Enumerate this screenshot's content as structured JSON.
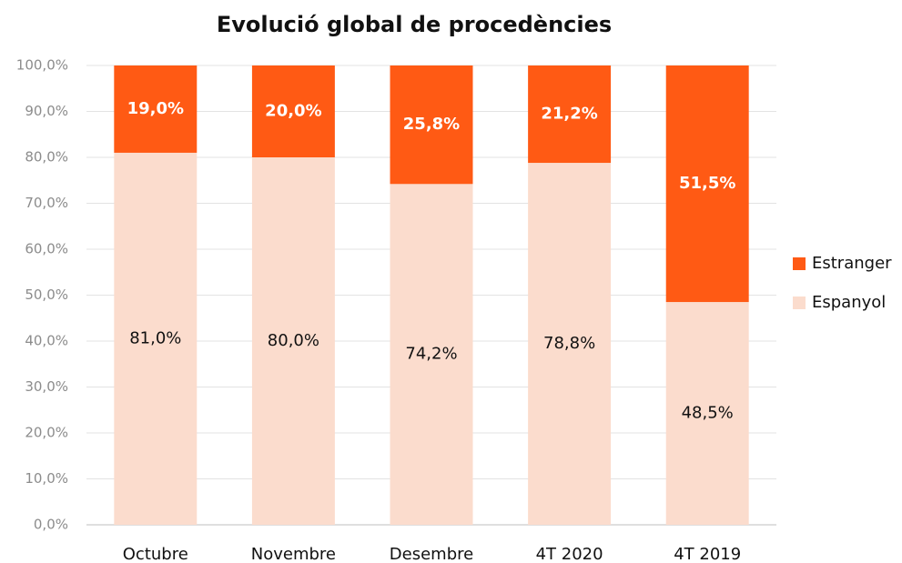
{
  "chart_data": {
    "type": "stacked_bar",
    "title": "Evolució global de procedències",
    "categories": [
      "Octubre",
      "Novembre",
      "Desembre",
      "4T 2020",
      "4T 2019"
    ],
    "series": [
      {
        "name": "Espanyol",
        "color": "#fbdccd",
        "values": [
          81.0,
          80.0,
          74.2,
          78.8,
          48.5
        ],
        "value_labels": [
          "81,0%",
          "80,0%",
          "74,2%",
          "78,8%",
          "48,5%"
        ]
      },
      {
        "name": "Estranger",
        "color": "#ff5a14",
        "values": [
          19.0,
          20.0,
          25.8,
          21.2,
          51.5
        ],
        "value_labels": [
          "19,0%",
          "20,0%",
          "25,8%",
          "21,2%",
          "51,5%"
        ]
      }
    ],
    "ylim": [
      0,
      100
    ],
    "yticks": [
      {
        "value": 0,
        "label": "0,0%"
      },
      {
        "value": 10,
        "label": "10,0%"
      },
      {
        "value": 20,
        "label": "20,0%"
      },
      {
        "value": 30,
        "label": "30,0%"
      },
      {
        "value": 40,
        "label": "40,0%"
      },
      {
        "value": 50,
        "label": "50,0%"
      },
      {
        "value": 60,
        "label": "60,0%"
      },
      {
        "value": 70,
        "label": "70,0%"
      },
      {
        "value": 80,
        "label": "80,0%"
      },
      {
        "value": 90,
        "label": "90,0%"
      },
      {
        "value": 100,
        "label": "100,0%"
      }
    ],
    "grid": true,
    "legend": "right"
  }
}
